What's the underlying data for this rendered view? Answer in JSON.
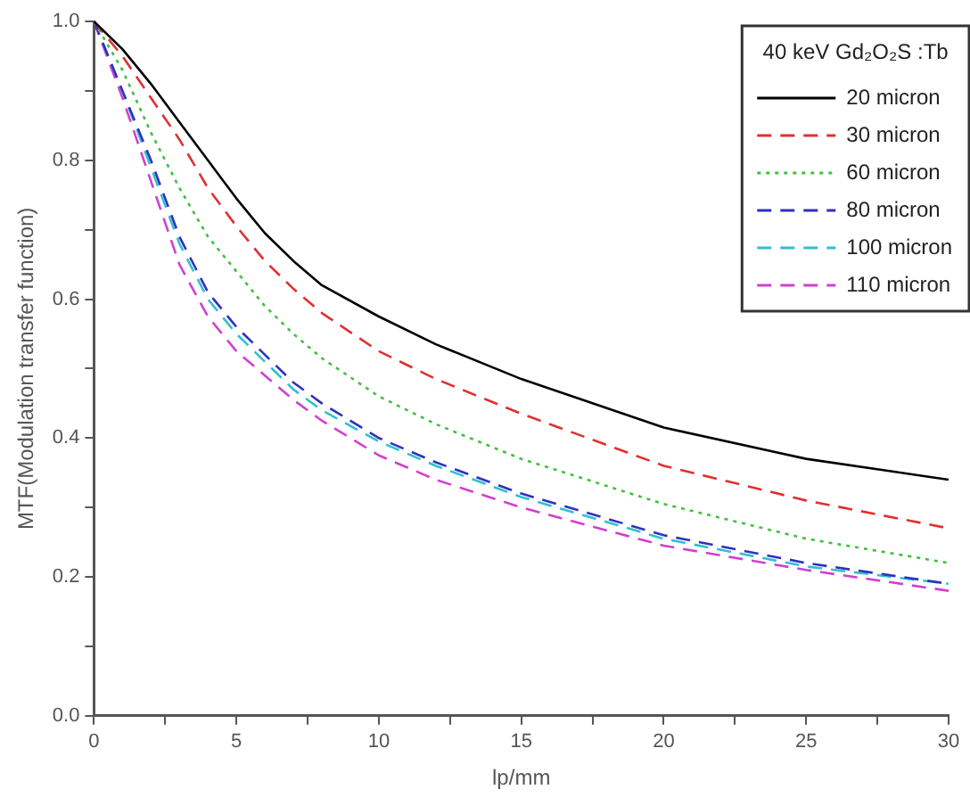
{
  "chart_data": {
    "type": "line",
    "xlabel": "lp/mm",
    "ylabel": "MTF(Modulation transfer function)",
    "legend_title": "40 keV Gd₂O₂S :Tb",
    "legend": "top right",
    "grid": false,
    "marker": "none",
    "xlim": [
      0,
      30
    ],
    "xticks": [
      0,
      {
        "value": 2.5,
        "label": null
      },
      5,
      {
        "value": 7.5,
        "label": null
      },
      10,
      {
        "value": 12.5,
        "label": null
      },
      15,
      {
        "value": 17.5,
        "label": null
      },
      20,
      {
        "value": 22.5,
        "label": null
      },
      25,
      {
        "value": 27.5,
        "label": null
      },
      30
    ],
    "ylim": [
      0,
      1
    ],
    "yticks": [
      {
        "value": 0,
        "label": "0.0"
      },
      {
        "value": 0.1,
        "label": null
      },
      {
        "value": 0.2,
        "label": "0.2"
      },
      {
        "value": 0.3,
        "label": null
      },
      {
        "value": 0.4,
        "label": "0.4"
      },
      {
        "value": 0.5,
        "label": null
      },
      {
        "value": 0.6,
        "label": "0.6"
      },
      {
        "value": 0.7,
        "label": null
      },
      {
        "value": 0.8,
        "label": "0.8"
      },
      {
        "value": 0.9,
        "label": null
      },
      {
        "value": 1,
        "label": "1.0"
      }
    ],
    "x": [
      0,
      1,
      2,
      3,
      4,
      5,
      6,
      7,
      8,
      10,
      12,
      15,
      20,
      25,
      30
    ],
    "series": [
      {
        "name": "20 micron",
        "color": "#000000",
        "line_style": "solid",
        "values": [
          1.0,
          0.96,
          0.91,
          0.855,
          0.8,
          0.745,
          0.695,
          0.655,
          0.62,
          0.575,
          0.535,
          0.485,
          0.415,
          0.37,
          0.34
        ]
      },
      {
        "name": "30 micron",
        "color": "#e03030",
        "line_style": "dashed",
        "values": [
          1.0,
          0.95,
          0.89,
          0.83,
          0.76,
          0.705,
          0.655,
          0.615,
          0.58,
          0.525,
          0.485,
          0.435,
          0.36,
          0.31,
          0.27
        ]
      },
      {
        "name": "60 micron",
        "color": "#40c040",
        "line_style": "dotted",
        "values": [
          1.0,
          0.93,
          0.84,
          0.76,
          0.69,
          0.64,
          0.59,
          0.55,
          0.515,
          0.46,
          0.42,
          0.37,
          0.305,
          0.255,
          0.22
        ]
      },
      {
        "name": "80 micron",
        "color": "#3030c0",
        "line_style": "dashed",
        "values": [
          1.0,
          0.9,
          0.8,
          0.69,
          0.61,
          0.56,
          0.52,
          0.48,
          0.45,
          0.4,
          0.365,
          0.32,
          0.26,
          0.22,
          0.19
        ]
      },
      {
        "name": "100 micron",
        "color": "#30c0d0",
        "line_style": "dashed",
        "values": [
          1.0,
          0.9,
          0.79,
          0.68,
          0.6,
          0.55,
          0.51,
          0.47,
          0.44,
          0.395,
          0.36,
          0.315,
          0.255,
          0.215,
          0.19
        ]
      },
      {
        "name": "110 micron",
        "color": "#d040d0",
        "line_style": "dashed",
        "values": [
          1.0,
          0.89,
          0.77,
          0.65,
          0.575,
          0.525,
          0.49,
          0.455,
          0.425,
          0.375,
          0.34,
          0.3,
          0.245,
          0.21,
          0.18
        ]
      }
    ]
  }
}
